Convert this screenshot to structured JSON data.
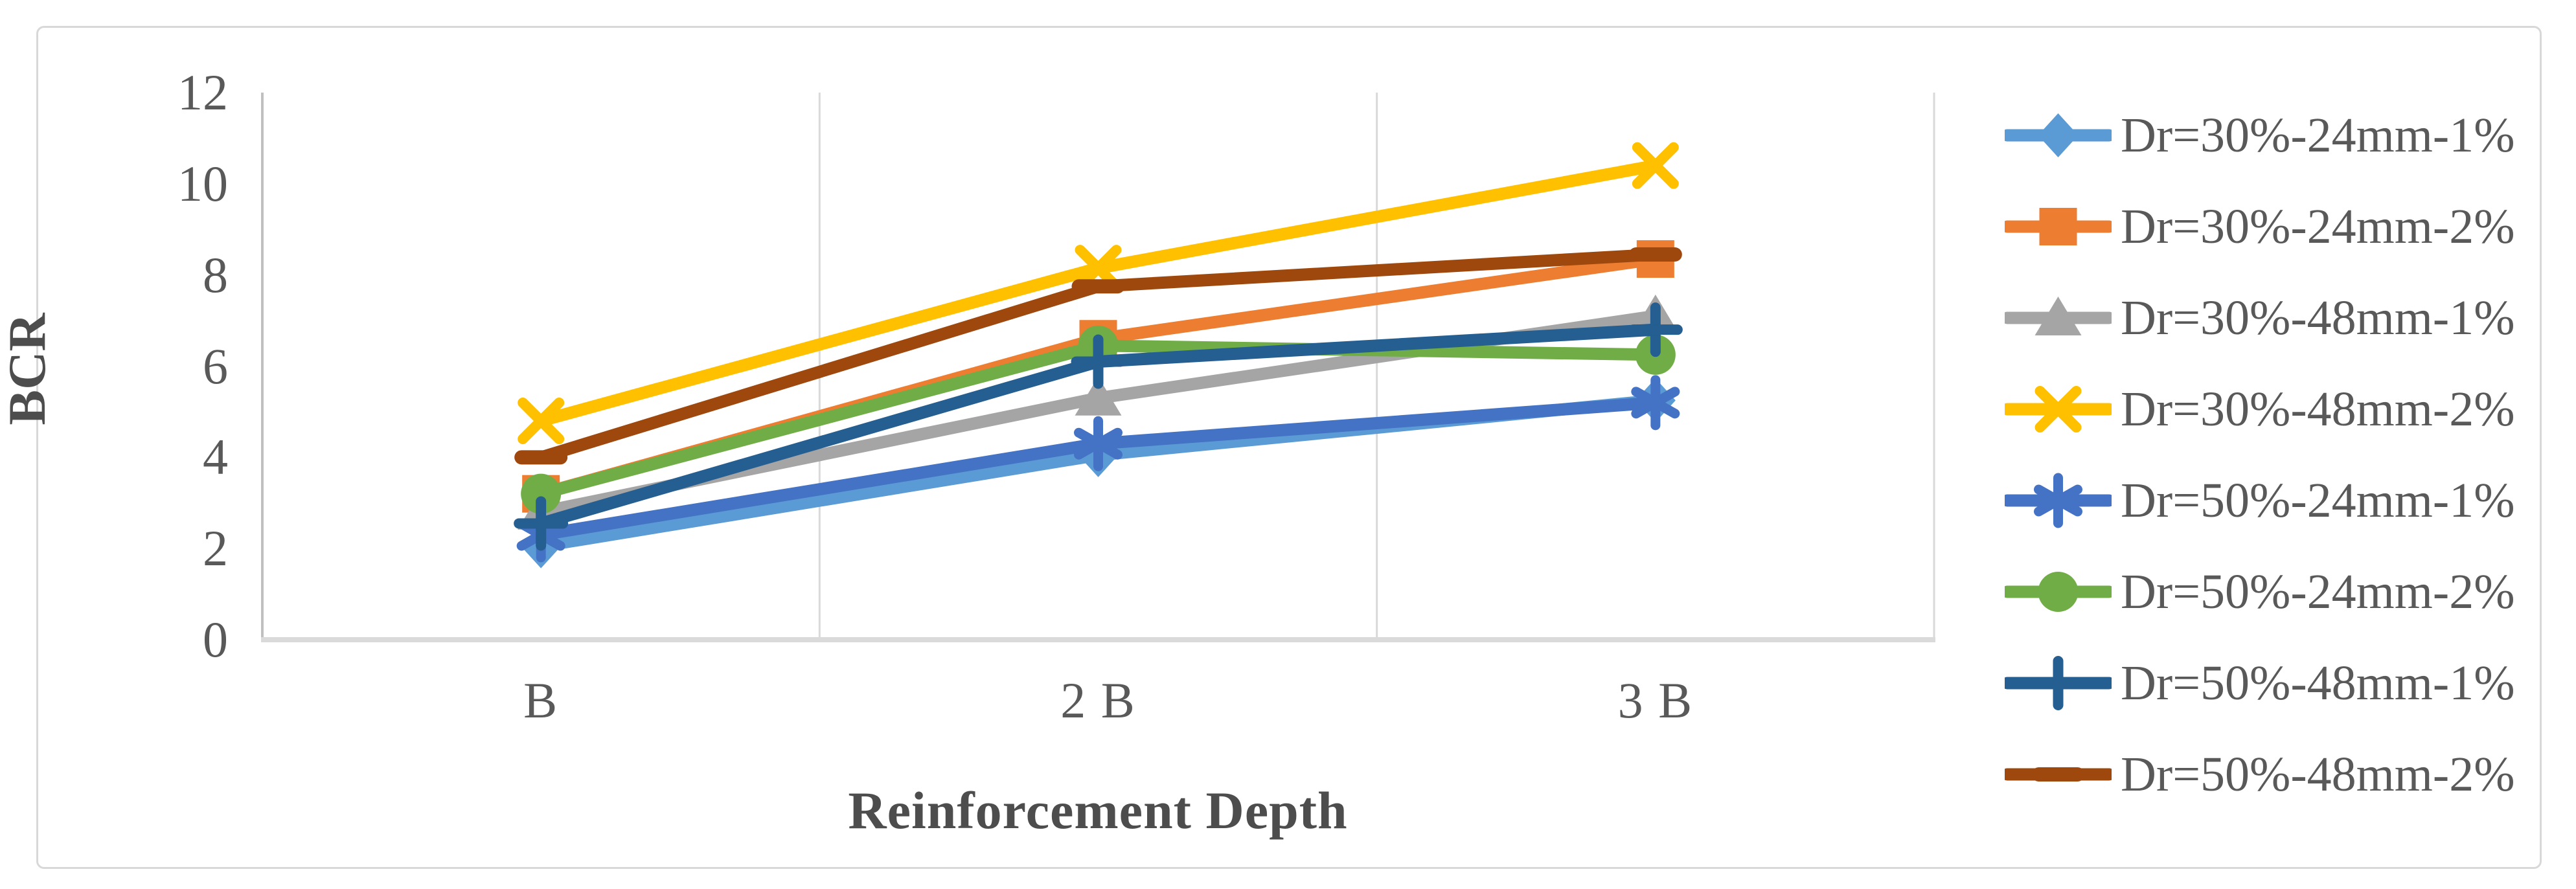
{
  "figure": {
    "background": "#FFFFFF",
    "border_color": "#D8D8D8"
  },
  "chart_data": {
    "type": "line",
    "title": "",
    "xlabel": "Reinforcement Depth",
    "ylabel": "BCR",
    "categories": [
      "B",
      "2 B",
      "3 B"
    ],
    "ylim": [
      0,
      12
    ],
    "yticks": [
      0,
      2,
      4,
      6,
      8,
      10,
      12
    ],
    "grid": "vertical-category-boundaries",
    "legend_position": "right",
    "axis_text_color": "#595959",
    "gridline_color": "#D9D9D9",
    "x_axis_line_color": "#DADADA",
    "y_axis_line_color": "#C0C0C0",
    "series": [
      {
        "name": "Dr=30%-24mm-1%",
        "color": "#5B9BD5",
        "marker": "diamond",
        "values": [
          2.05,
          4.05,
          5.25
        ]
      },
      {
        "name": "Dr=30%-24mm-2%",
        "color": "#ED7D31",
        "marker": "square",
        "values": [
          3.2,
          6.6,
          8.35
        ]
      },
      {
        "name": "Dr=30%-48mm-1%",
        "color": "#A5A5A5",
        "marker": "triangle",
        "values": [
          2.8,
          5.3,
          7.1
        ]
      },
      {
        "name": "Dr=30%-48mm-2%",
        "color": "#FFC000",
        "marker": "x",
        "values": [
          4.8,
          8.15,
          10.4
        ]
      },
      {
        "name": "Dr=50%-24mm-1%",
        "color": "#4472C4",
        "marker": "asterisk",
        "values": [
          2.3,
          4.3,
          5.2
        ]
      },
      {
        "name": "Dr=50%-24mm-2%",
        "color": "#70AD47",
        "marker": "circle",
        "values": [
          3.2,
          6.45,
          6.25
        ]
      },
      {
        "name": "Dr=50%-48mm-1%",
        "color": "#255E91",
        "marker": "plus",
        "values": [
          2.55,
          6.1,
          6.8
        ]
      },
      {
        "name": "Dr=50%-48mm-2%",
        "color": "#9E480E",
        "marker": "dash",
        "values": [
          4.0,
          7.75,
          8.45
        ]
      }
    ]
  }
}
